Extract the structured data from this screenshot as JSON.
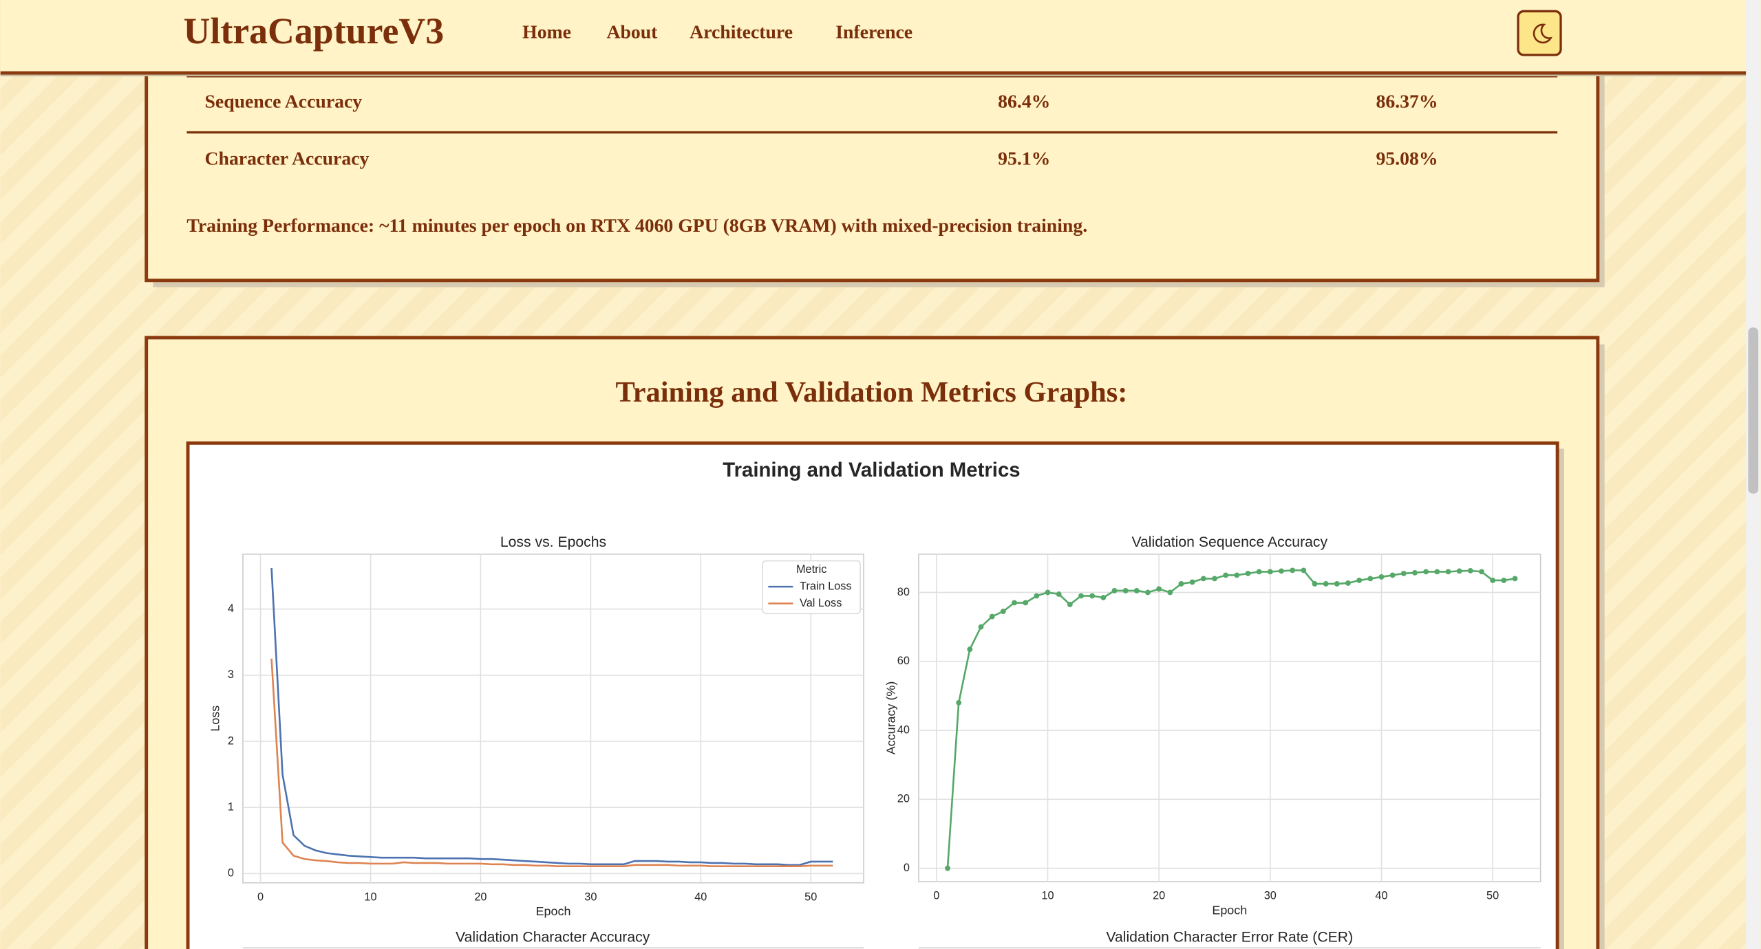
{
  "nav": {
    "brand": "UltraCaptureV3",
    "links": [
      "Home",
      "About",
      "Architecture",
      "Inference"
    ]
  },
  "metrics_table": {
    "rows": [
      [
        "Sequence Accuracy",
        "86.4%",
        "86.37%"
      ],
      [
        "Character Accuracy",
        "95.1%",
        "95.08%"
      ]
    ]
  },
  "note": {
    "label": "Training Performance:",
    "text": "~11 minutes per epoch on RTX 4060 GPU (8GB VRAM) with mixed-precision training."
  },
  "section_title": "Training and Validation Metrics Graphs:",
  "figure": {
    "title": "Training and Validation Metrics",
    "charts": [
      {
        "type": "line",
        "title": "Loss vs. Epochs",
        "xlabel": "Epoch",
        "ylabel": "Loss",
        "grid": true,
        "legend": {
          "title": "Metric",
          "corner": "upper right"
        },
        "x": [
          1,
          2,
          3,
          4,
          5,
          6,
          7,
          8,
          9,
          10,
          11,
          12,
          13,
          14,
          15,
          16,
          17,
          18,
          19,
          20,
          21,
          22,
          23,
          24,
          25,
          26,
          27,
          28,
          29,
          30,
          31,
          32,
          33,
          34,
          35,
          36,
          37,
          38,
          39,
          40,
          41,
          42,
          43,
          44,
          45,
          46,
          47,
          48,
          49,
          50,
          51,
          52
        ],
        "xlim": [
          -1.6,
          54.8
        ],
        "ylim": [
          -0.14,
          4.83
        ],
        "xticks": [
          0,
          10,
          20,
          30,
          40,
          50
        ],
        "yticks": [
          0,
          1,
          2,
          3,
          4
        ],
        "series": [
          {
            "name": "Train Loss",
            "color": "#4c72b0",
            "values": [
              4.62,
              1.5,
              0.58,
              0.42,
              0.35,
              0.31,
              0.29,
              0.27,
              0.26,
              0.25,
              0.24,
              0.24,
              0.24,
              0.24,
              0.23,
              0.23,
              0.23,
              0.23,
              0.23,
              0.22,
              0.22,
              0.21,
              0.2,
              0.19,
              0.18,
              0.17,
              0.16,
              0.15,
              0.15,
              0.14,
              0.14,
              0.14,
              0.14,
              0.19,
              0.19,
              0.19,
              0.18,
              0.18,
              0.17,
              0.17,
              0.16,
              0.16,
              0.15,
              0.15,
              0.14,
              0.14,
              0.14,
              0.13,
              0.13,
              0.18,
              0.18,
              0.18
            ]
          },
          {
            "name": "Val Loss",
            "color": "#dd8452",
            "values": [
              3.25,
              0.47,
              0.27,
              0.22,
              0.2,
              0.19,
              0.17,
              0.16,
              0.16,
              0.15,
              0.15,
              0.15,
              0.17,
              0.16,
              0.16,
              0.16,
              0.15,
              0.15,
              0.15,
              0.15,
              0.14,
              0.14,
              0.13,
              0.13,
              0.12,
              0.12,
              0.11,
              0.11,
              0.11,
              0.11,
              0.11,
              0.11,
              0.11,
              0.13,
              0.13,
              0.13,
              0.13,
              0.12,
              0.12,
              0.12,
              0.11,
              0.11,
              0.11,
              0.11,
              0.11,
              0.11,
              0.11,
              0.11,
              0.11,
              0.12,
              0.12,
              0.12
            ]
          }
        ]
      },
      {
        "type": "line",
        "title": "Validation Sequence Accuracy",
        "xlabel": "Epoch",
        "ylabel": "Accuracy (%)",
        "grid": true,
        "markers": true,
        "x": [
          1,
          2,
          3,
          4,
          5,
          6,
          7,
          8,
          9,
          10,
          11,
          12,
          13,
          14,
          15,
          16,
          17,
          18,
          19,
          20,
          21,
          22,
          23,
          24,
          25,
          26,
          27,
          28,
          29,
          30,
          31,
          32,
          33,
          34,
          35,
          36,
          37,
          38,
          39,
          40,
          41,
          42,
          43,
          44,
          45,
          46,
          47,
          48,
          49,
          50,
          51,
          52
        ],
        "xlim": [
          -1.6,
          54.3
        ],
        "ylim": [
          -3.9,
          91.1
        ],
        "xticks": [
          0,
          10,
          20,
          30,
          40,
          50
        ],
        "yticks": [
          0,
          20,
          40,
          60,
          80
        ],
        "series": [
          {
            "name": "Sequence Accuracy",
            "color": "#55a868",
            "values": [
              0,
              48,
              63.5,
              70,
              73,
              74.5,
              77,
              77,
              79,
              80,
              79.5,
              76.5,
              79,
              79,
              78.5,
              80.5,
              80.5,
              80.5,
              80,
              81,
              80,
              82.5,
              83,
              84,
              84,
              85,
              85,
              85.5,
              86,
              86,
              86.2,
              86.4,
              86.4,
              82.5,
              82.5,
              82.5,
              82.7,
              83.5,
              84,
              84.5,
              85,
              85.5,
              85.7,
              86,
              86,
              86,
              86.2,
              86.3,
              86,
              83.5,
              83.5,
              84
            ]
          }
        ]
      }
    ],
    "more_titles": [
      "Validation Character Accuracy",
      "Validation Character Error Rate (CER)"
    ]
  }
}
